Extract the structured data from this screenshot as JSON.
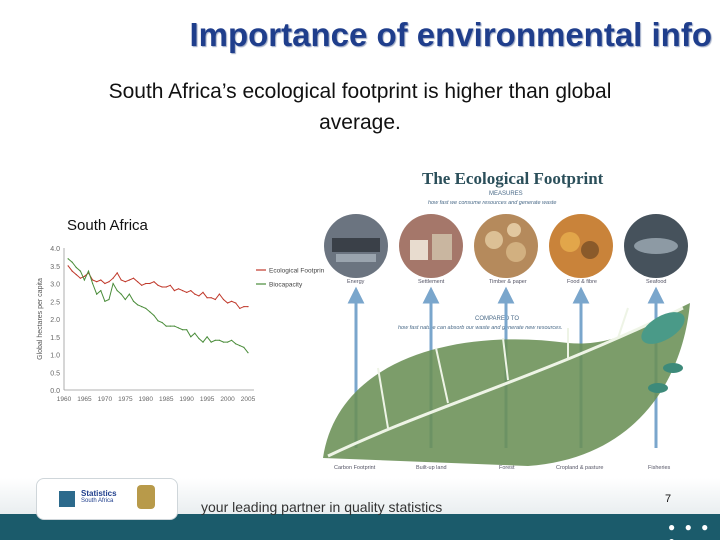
{
  "slide": {
    "title": "Importance of environmental info",
    "subtitle_line1": "South Africa’s ecological footprint is higher than global",
    "subtitle_line2": "average.",
    "chart_label": "South Africa",
    "page_number": "7"
  },
  "footer": {
    "tagline": "your leading partner in quality statistics",
    "logo_line1": "Statistics",
    "logo_line2": "South Africa"
  },
  "infographic": {
    "title": "The Ecological Footprint",
    "measures_label": "MEASURES",
    "measures_text": "how fast we consume resources and generate waste",
    "compared_label": "COMPARED TO",
    "compared_text": "how fast nature can absorb our waste and generate new resources.",
    "consumption_categories": [
      "Energy",
      "Settlement",
      "Timber & paper",
      "Food & fibre",
      "Seafood"
    ],
    "nature_categories": [
      "Carbon Footprint",
      "Built-up land",
      "Forest",
      "Cropland & pasture",
      "Fisheries"
    ]
  },
  "chart_data": {
    "type": "line",
    "ylabel": "Global hectares per capita",
    "xlabel": "",
    "x": [
      1961,
      1962,
      1963,
      1964,
      1965,
      1966,
      1967,
      1968,
      1969,
      1970,
      1971,
      1972,
      1973,
      1974,
      1975,
      1976,
      1977,
      1978,
      1979,
      1980,
      1981,
      1982,
      1983,
      1984,
      1985,
      1986,
      1987,
      1988,
      1989,
      1990,
      1991,
      1992,
      1993,
      1994,
      1995,
      1996,
      1997,
      1998,
      1999,
      2000,
      2001,
      2002,
      2003,
      2004,
      2005
    ],
    "x_ticks": [
      "1960",
      "1965",
      "1970",
      "1975",
      "1980",
      "1985",
      "1990",
      "1995",
      "2000",
      "2005"
    ],
    "y_ticks": [
      "0.0",
      "0.5",
      "1.0",
      "1.5",
      "2.0",
      "2.5",
      "3.0",
      "3.5",
      "4.0"
    ],
    "ylim": [
      0,
      4.0
    ],
    "xlim": [
      1960,
      2005
    ],
    "legend_position": "right",
    "series": [
      {
        "name": "Ecological Footprint",
        "color": "#c0392b",
        "values": [
          3.5,
          3.35,
          3.25,
          3.15,
          3.2,
          3.3,
          3.1,
          3.05,
          3.1,
          3.0,
          3.05,
          3.15,
          3.3,
          3.1,
          3.05,
          3.1,
          3.15,
          3.05,
          2.95,
          3.0,
          3.0,
          3.05,
          2.95,
          2.9,
          2.9,
          2.95,
          2.8,
          2.85,
          2.8,
          2.75,
          2.8,
          2.7,
          2.65,
          2.75,
          2.6,
          2.6,
          2.55,
          2.7,
          2.55,
          2.45,
          2.5,
          2.45,
          2.3,
          2.35,
          2.35
        ]
      },
      {
        "name": "Biocapacity",
        "color": "#4a8c3a",
        "values": [
          3.7,
          3.6,
          3.45,
          3.35,
          3.1,
          3.35,
          3.0,
          2.7,
          2.8,
          2.5,
          2.55,
          3.0,
          2.8,
          2.7,
          2.55,
          2.7,
          2.5,
          2.4,
          2.35,
          2.3,
          2.2,
          2.1,
          1.95,
          1.9,
          1.8,
          1.8,
          1.8,
          1.75,
          1.7,
          1.7,
          1.5,
          1.6,
          1.45,
          1.35,
          1.5,
          1.35,
          1.4,
          1.4,
          1.35,
          1.35,
          1.4,
          1.3,
          1.25,
          1.2,
          1.05
        ]
      }
    ]
  }
}
